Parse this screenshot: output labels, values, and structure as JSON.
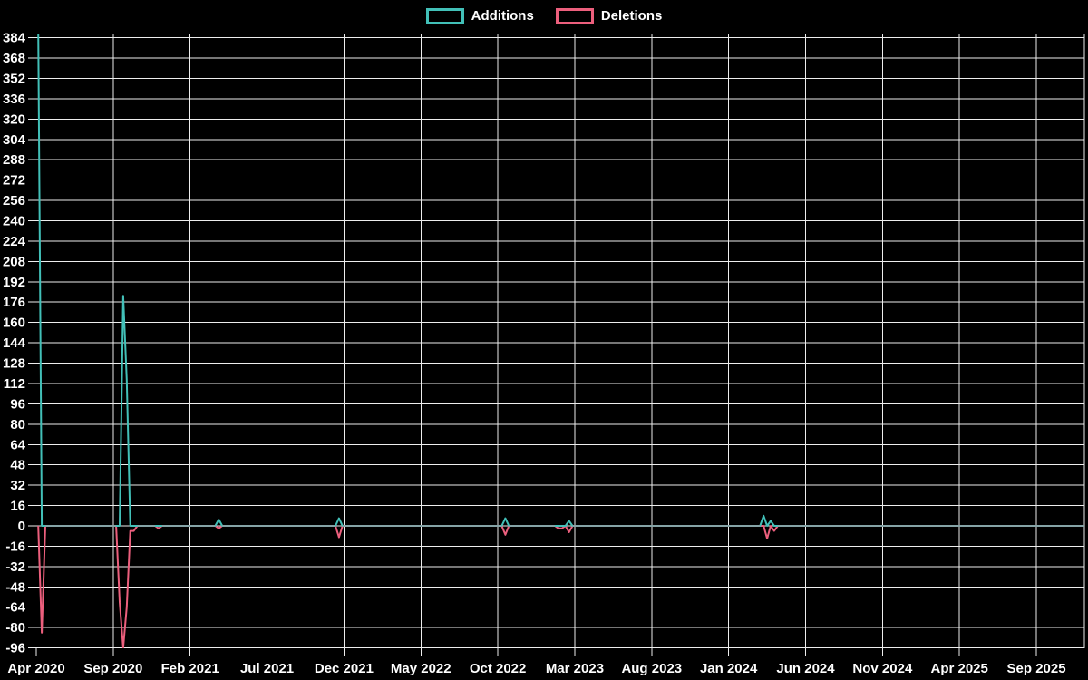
{
  "legend": {
    "items": [
      {
        "label": "Additions",
        "color": "#42c0b8"
      },
      {
        "label": "Deletions",
        "color": "#ec5f7d"
      }
    ]
  },
  "chart_data": {
    "type": "line",
    "title": "",
    "background": "#000000",
    "grid": true,
    "legend_position": "top-center",
    "x_axis": {
      "start": "2020-04-01",
      "end": "2025-12-07",
      "interval": "weekly",
      "tick_labels": [
        "Apr 2020",
        "Sep 2020",
        "Feb 2021",
        "Jul 2021",
        "Dec 2021",
        "May 2022",
        "Oct 2022",
        "Mar 2023",
        "Aug 2023",
        "Jan 2024",
        "Jun 2024",
        "Nov 2024",
        "Apr 2025",
        "Sep 2025"
      ]
    },
    "y_axis": {
      "min": -96,
      "max": 384,
      "tick_step": 16,
      "tick_labels": [
        "384",
        "368",
        "352",
        "336",
        "320",
        "304",
        "288",
        "272",
        "256",
        "240",
        "224",
        "208",
        "192",
        "176",
        "160",
        "144",
        "128",
        "112",
        "96",
        "80",
        "64",
        "48",
        "32",
        "16",
        "0",
        "-16",
        "-32",
        "-48",
        "-64",
        "-80",
        "-96"
      ]
    },
    "baseline_overlap_color": "#85a3a6",
    "gridline_color": "#ededed",
    "note": "all weekly values are 0 except the events listed; first additions spike exceeds the visible axis (clipped at top, > 384)",
    "series": [
      {
        "name": "Additions",
        "color": "#42c0b8",
        "events": {
          "2020-04-05": 390,
          "2020-09-20": 181,
          "2020-09-27": 115,
          "2021-03-28": 5,
          "2021-11-21": 6,
          "2022-10-16": 6,
          "2023-02-19": 4,
          "2024-03-10": 8,
          "2024-03-24": 4
        }
      },
      {
        "name": "Deletions",
        "color": "#ec5f7d",
        "events": {
          "2020-04-12": -84,
          "2020-09-13": -60,
          "2020-09-20": -96,
          "2020-09-27": -64,
          "2020-10-04": -4,
          "2020-10-11": -4,
          "2020-11-29": -2,
          "2021-03-28": -2,
          "2021-11-21": -9,
          "2022-10-16": -7,
          "2023-01-29": -2,
          "2023-02-05": -2,
          "2023-02-19": -5,
          "2024-03-17": -10,
          "2024-03-31": -4
        }
      }
    ]
  }
}
